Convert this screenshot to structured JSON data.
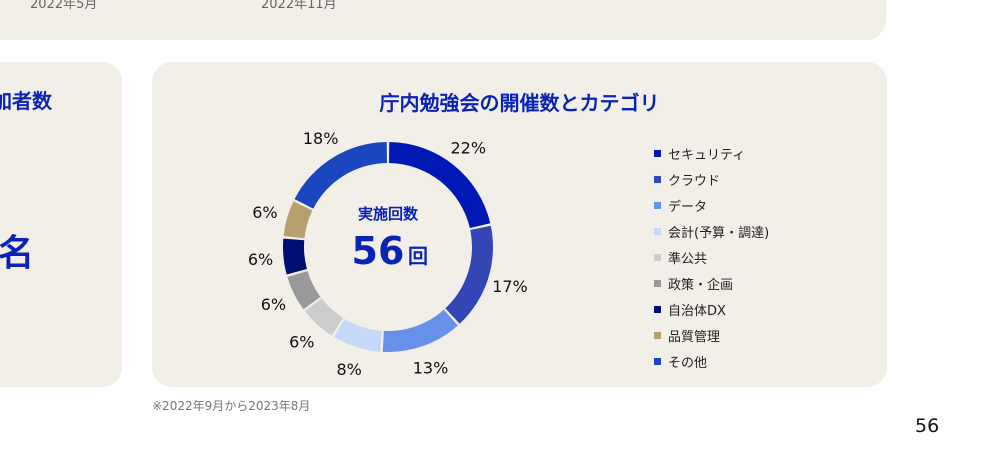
{
  "top_card": {
    "labels": [
      "2022年5月",
      "2022年11月"
    ]
  },
  "left_card": {
    "title": "加者数",
    "unit": "名"
  },
  "chart_data": {
    "type": "pie",
    "subtype": "donut",
    "title": "庁内勉強会の開催数とカテゴリ",
    "center_label": "実施回数",
    "center_value": "56",
    "center_unit": "回",
    "categories": [
      "セキュリティ",
      "クラウド",
      "データ",
      "会計(予算・調達)",
      "準公共",
      "政策・企画",
      "自治体DX",
      "品質管理",
      "その他"
    ],
    "values": [
      22,
      17,
      13,
      8,
      6,
      6,
      6,
      6,
      18
    ],
    "labels": [
      "22%",
      "17%",
      "13%",
      "8%",
      "6%",
      "6%",
      "6%",
      "6%",
      "18%"
    ],
    "colors": [
      "#0019b4",
      "#3346b5",
      "#6690ea",
      "#c6d8f8",
      "#cccccc",
      "#999999",
      "#000d73",
      "#b89f6e",
      "#1a47c0"
    ],
    "legend_position": "right",
    "start": "top",
    "direction": "clockwise"
  },
  "footnote": "※2022年9月から2023年8月",
  "page_number": "56"
}
